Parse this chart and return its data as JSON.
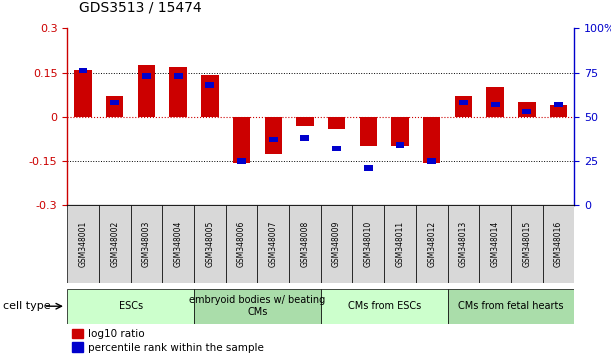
{
  "title": "GDS3513 / 15474",
  "samples": [
    "GSM348001",
    "GSM348002",
    "GSM348003",
    "GSM348004",
    "GSM348005",
    "GSM348006",
    "GSM348007",
    "GSM348008",
    "GSM348009",
    "GSM348010",
    "GSM348011",
    "GSM348012",
    "GSM348013",
    "GSM348014",
    "GSM348015",
    "GSM348016"
  ],
  "log10_ratio": [
    0.16,
    0.07,
    0.175,
    0.168,
    0.143,
    -0.156,
    -0.125,
    -0.03,
    -0.04,
    -0.1,
    -0.1,
    -0.156,
    0.07,
    0.1,
    0.05,
    0.04
  ],
  "percentile_rank": [
    76,
    58,
    73,
    73,
    68,
    25,
    37,
    38,
    32,
    21,
    34,
    25,
    58,
    57,
    53,
    57
  ],
  "red_color": "#cc0000",
  "blue_color": "#0000cc",
  "ylim_left": [
    -0.3,
    0.3
  ],
  "ylim_right": [
    0,
    100
  ],
  "cell_type_groups": [
    {
      "label": "ESCs",
      "start": 0,
      "end": 3
    },
    {
      "label": "embryoid bodies w/ beating\nCMs",
      "start": 4,
      "end": 7
    },
    {
      "label": "CMs from ESCs",
      "start": 8,
      "end": 11
    },
    {
      "label": "CMs from fetal hearts",
      "start": 12,
      "end": 15
    }
  ],
  "cell_type_colors": [
    "#ccffcc",
    "#aaddaa",
    "#ccffcc",
    "#aaddaa"
  ],
  "bar_width": 0.55
}
